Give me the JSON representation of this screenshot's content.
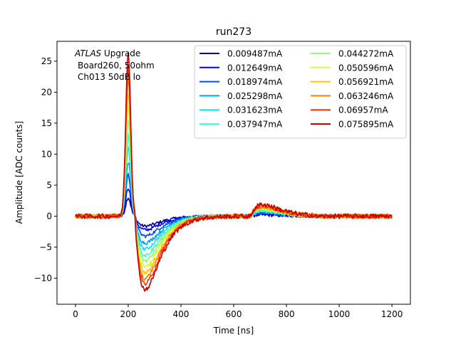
{
  "chart_data": {
    "type": "line",
    "title": "run273",
    "xlabel": "Time [ns]",
    "ylabel": "Amplitude [ADC counts]",
    "xlim": [
      -70,
      1270
    ],
    "ylim": [
      -14.2,
      28.2
    ],
    "xticks": [
      0,
      200,
      400,
      600,
      800,
      1000,
      1200
    ],
    "yticks": [
      -10,
      -5,
      0,
      5,
      10,
      15,
      20,
      25
    ],
    "grid": false,
    "legend_position": "top-right",
    "legend_columns": 2,
    "annotation": {
      "line1_italic": "ATLAS",
      "line1_rest": " Upgrade",
      "line2": "Board260, 50ohm",
      "line3": "Ch013 50dB lo"
    },
    "pulse_model": {
      "t_start": 0,
      "t_end": 1200,
      "t_step": 3.125,
      "noise_amplitude": 0.25
    },
    "series": [
      {
        "name": "0.009487mA",
        "color": "#00008f",
        "peak": 3.0,
        "undershoot": -1.6,
        "bump": 0.2
      },
      {
        "name": "0.012649mA",
        "color": "#0000f0",
        "peak": 4.6,
        "undershoot": -2.2,
        "bump": 0.35
      },
      {
        "name": "0.018974mA",
        "color": "#004cff",
        "peak": 6.7,
        "undershoot": -3.2,
        "bump": 0.5
      },
      {
        "name": "0.025298mA",
        "color": "#00a0ff",
        "peak": 8.8,
        "undershoot": -4.3,
        "bump": 0.7
      },
      {
        "name": "0.031623mA",
        "color": "#10e8e8",
        "peak": 11.0,
        "undershoot": -5.3,
        "bump": 0.85
      },
      {
        "name": "0.037947mA",
        "color": "#40ffb8",
        "peak": 13.2,
        "undershoot": -6.3,
        "bump": 1.0
      },
      {
        "name": "0.044272mA",
        "color": "#8cff70",
        "peak": 15.4,
        "undershoot": -7.2,
        "bump": 1.15
      },
      {
        "name": "0.050596mA",
        "color": "#cfff30",
        "peak": 17.6,
        "undershoot": -8.2,
        "bump": 1.3
      },
      {
        "name": "0.056921mA",
        "color": "#ffc800",
        "peak": 19.8,
        "undershoot": -9.1,
        "bump": 1.45
      },
      {
        "name": "0.063246mA",
        "color": "#ff8000",
        "peak": 22.0,
        "undershoot": -10.0,
        "bump": 1.6
      },
      {
        "name": "0.06957mA",
        "color": "#ff3000",
        "peak": 24.2,
        "undershoot": -10.9,
        "bump": 1.75
      },
      {
        "name": "0.075895mA",
        "color": "#c80000",
        "peak": 26.6,
        "undershoot": -11.8,
        "bump": 1.9
      }
    ]
  }
}
